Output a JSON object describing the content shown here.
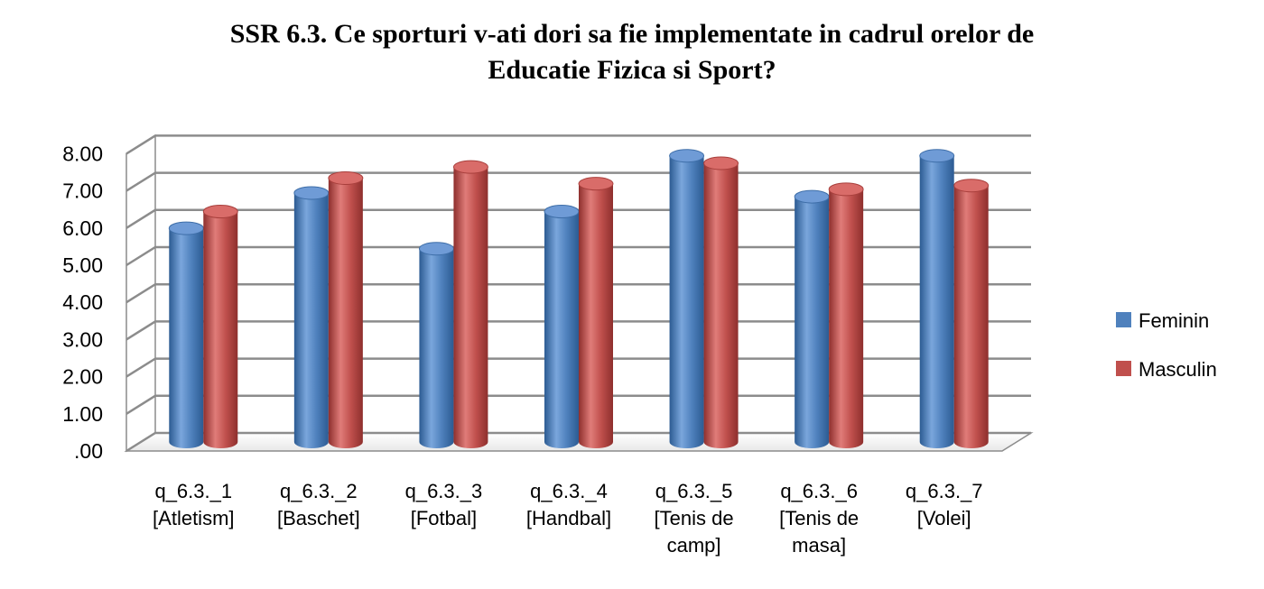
{
  "chart_data": {
    "type": "bar",
    "style": "3d-cylinder",
    "title_lines": [
      "SSR 6.3. Ce sporturi v-ati dori sa fie implementate in cadrul orelor de",
      "Educatie Fizica si Sport?"
    ],
    "categories": [
      [
        "q_6.3._1",
        "[Atletism]"
      ],
      [
        "q_6.3._2",
        "[Baschet]"
      ],
      [
        "q_6.3._3",
        "[Fotbal]"
      ],
      [
        "q_6.3._4",
        "[Handbal]"
      ],
      [
        "q_6.3._5",
        "[Tenis de",
        "camp]"
      ],
      [
        "q_6.3._6",
        "[Tenis de",
        "masa]"
      ],
      [
        "q_6.3._7",
        "[Volei]"
      ]
    ],
    "series": [
      {
        "name": "Feminin",
        "color": "#4f81bd",
        "values": [
          5.75,
          6.7,
          5.2,
          6.2,
          7.7,
          6.6,
          7.7
        ]
      },
      {
        "name": "Masculin",
        "color": "#c0504d",
        "values": [
          6.2,
          7.1,
          7.4,
          6.95,
          7.5,
          6.8,
          6.9
        ]
      }
    ],
    "y_ticks": [
      ".00",
      "1.00",
      "2.00",
      "3.00",
      "4.00",
      "5.00",
      "6.00",
      "7.00",
      "8.00"
    ],
    "ylim": [
      0,
      8
    ],
    "grid": true,
    "legend_position": "right"
  }
}
